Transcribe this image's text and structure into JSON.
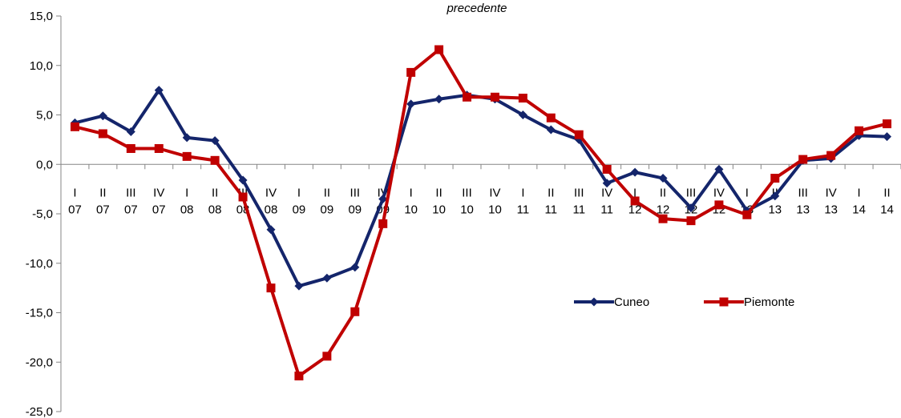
{
  "chart_data": {
    "type": "line",
    "title": "precedente",
    "xlabel": "",
    "ylabel": "",
    "ylim": [
      -25,
      15
    ],
    "ytick_step": 5,
    "ytick_labels": [
      "15,0",
      "10,0",
      "5,0",
      "0,0",
      "-5,0",
      "-10,0",
      "-15,0",
      "-20,0",
      "-25,0"
    ],
    "grid": false,
    "legend_position": "center-right",
    "categories": [
      {
        "quarter": "I",
        "year": "07"
      },
      {
        "quarter": "II",
        "year": "07"
      },
      {
        "quarter": "III",
        "year": "07"
      },
      {
        "quarter": "IV",
        "year": "07"
      },
      {
        "quarter": "I",
        "year": "08"
      },
      {
        "quarter": "II",
        "year": "08"
      },
      {
        "quarter": "III",
        "year": "08"
      },
      {
        "quarter": "IV",
        "year": "08"
      },
      {
        "quarter": "I",
        "year": "09"
      },
      {
        "quarter": "II",
        "year": "09"
      },
      {
        "quarter": "III",
        "year": "09"
      },
      {
        "quarter": "IV",
        "year": "09"
      },
      {
        "quarter": "I",
        "year": "10"
      },
      {
        "quarter": "II",
        "year": "10"
      },
      {
        "quarter": "III",
        "year": "10"
      },
      {
        "quarter": "IV",
        "year": "10"
      },
      {
        "quarter": "I",
        "year": "11"
      },
      {
        "quarter": "II",
        "year": "11"
      },
      {
        "quarter": "III",
        "year": "11"
      },
      {
        "quarter": "IV",
        "year": "11"
      },
      {
        "quarter": "I",
        "year": "12"
      },
      {
        "quarter": "II",
        "year": "12"
      },
      {
        "quarter": "III",
        "year": "12"
      },
      {
        "quarter": "IV",
        "year": "12"
      },
      {
        "quarter": "I",
        "year": "13"
      },
      {
        "quarter": "II",
        "year": "13"
      },
      {
        "quarter": "III",
        "year": "13"
      },
      {
        "quarter": "IV",
        "year": "13"
      },
      {
        "quarter": "I",
        "year": "14"
      },
      {
        "quarter": "II",
        "year": "14"
      }
    ],
    "series": [
      {
        "name": "Cuneo",
        "color": "#14256b",
        "marker": "diamond",
        "values": [
          4.2,
          4.9,
          3.3,
          7.5,
          2.7,
          2.4,
          -1.6,
          -6.6,
          -12.3,
          -11.5,
          -10.4,
          -3.5,
          6.1,
          6.6,
          7.0,
          6.6,
          5.0,
          3.5,
          2.5,
          -1.9,
          -0.8,
          -1.4,
          -4.4,
          -0.5,
          -4.7,
          -3.2,
          0.4,
          0.6,
          2.9,
          2.8
        ]
      },
      {
        "name": "Piemonte",
        "color": "#c00000",
        "marker": "square",
        "values": [
          3.8,
          3.1,
          1.6,
          1.6,
          0.8,
          0.4,
          -3.3,
          -12.5,
          -21.4,
          -19.4,
          -14.9,
          -6.0,
          9.3,
          11.6,
          6.8,
          6.8,
          6.7,
          4.7,
          3.0,
          -0.5,
          -3.7,
          -5.5,
          -5.7,
          -4.1,
          -5.1,
          -1.4,
          0.5,
          0.9,
          3.4,
          4.1
        ]
      }
    ]
  }
}
